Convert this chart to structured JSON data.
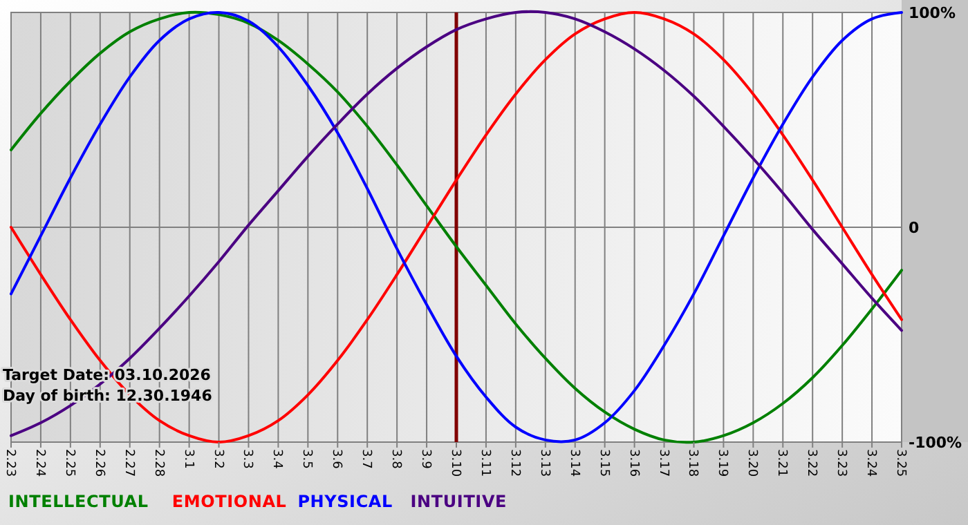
{
  "chart_data": {
    "type": "line",
    "categories": [
      "2.23",
      "2.24",
      "2.25",
      "2.26",
      "2.27",
      "2.28",
      "3.1",
      "3.2",
      "3.3",
      "3.4",
      "3.5",
      "3.6",
      "3.7",
      "3.8",
      "3.9",
      "3.10",
      "3.11",
      "3.12",
      "3.13",
      "3.14",
      "3.15",
      "3.16",
      "3.17",
      "3.18",
      "3.19",
      "3.20",
      "3.21",
      "3.22",
      "3.23",
      "3.24",
      "3.25"
    ],
    "series": [
      {
        "name": "INTELLECTUAL",
        "color": "#008000",
        "values": [
          36,
          53,
          68,
          81,
          91,
          97,
          100,
          99,
          95,
          87,
          76,
          63,
          47,
          29,
          10,
          -9,
          -27,
          -45,
          -61,
          -75,
          -86,
          -94,
          -99,
          -100,
          -97,
          -91,
          -82,
          -70,
          -55,
          -38,
          -20
        ]
      },
      {
        "name": "EMOTIONAL",
        "color": "#ff0000",
        "values": [
          0,
          -22,
          -43,
          -62,
          -78,
          -90,
          -97,
          -100,
          -97,
          -90,
          -78,
          -62,
          -43,
          -22,
          0,
          22,
          43,
          62,
          78,
          90,
          97,
          100,
          97,
          90,
          78,
          62,
          43,
          22,
          0,
          -22,
          -43
        ]
      },
      {
        "name": "PHYSICAL",
        "color": "#0000ff",
        "values": [
          -31,
          -4,
          23,
          48,
          70,
          87,
          97,
          100,
          96,
          84,
          66,
          44,
          18,
          -10,
          -36,
          -60,
          -79,
          -93,
          -99,
          -99,
          -91,
          -76,
          -55,
          -31,
          -4,
          23,
          48,
          70,
          87,
          97,
          100
        ]
      },
      {
        "name": "INTUITIVE",
        "color": "#4b0082",
        "values": [
          -97,
          -91,
          -83,
          -73,
          -61,
          -47,
          -32,
          -16,
          1,
          17,
          33,
          48,
          62,
          74,
          84,
          92,
          97,
          100,
          100,
          97,
          91,
          83,
          73,
          61,
          47,
          32,
          16,
          -1,
          -17,
          -33,
          -48
        ]
      }
    ],
    "ylim": [
      -100,
      100
    ],
    "yticks": [
      {
        "value": 100,
        "label": "100%"
      },
      0,
      {
        "value": -100,
        "label": "-100%"
      }
    ],
    "grid": true,
    "legend": "bottom",
    "marker": "none",
    "line_style": "solid",
    "ref_lines": [
      {
        "axis": "x",
        "value": "3.10",
        "color": "#800000"
      }
    ],
    "annotations": [
      "Target Date: 03.10.2026",
      "Day of birth: 12.30.1946"
    ]
  }
}
